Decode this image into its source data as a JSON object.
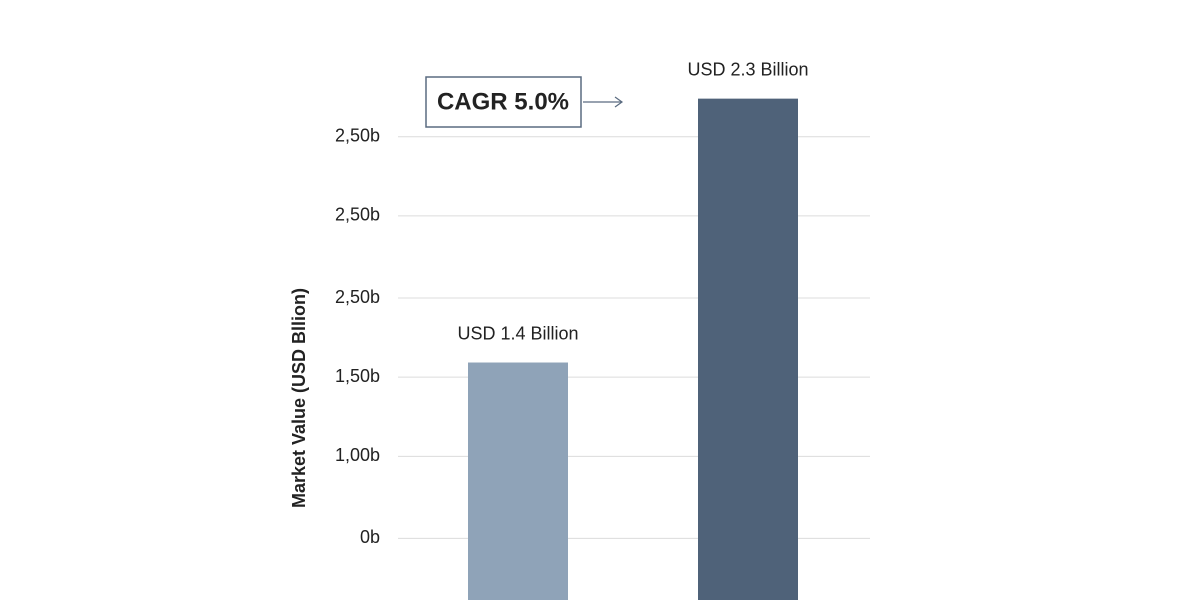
{
  "chart_data": {
    "type": "bar",
    "y_label": "Market Value (USD Bllion)",
    "annotation": "CAGR 5.0%",
    "categories": [
      null,
      null
    ],
    "values": [
      1.4,
      2.3
    ],
    "value_labels": [
      "USD 1.4 Billion",
      "USD 2.3 Billion"
    ],
    "colors": [
      "#8fa3b8",
      "#4f6279"
    ],
    "ylim": [
      0.59,
      2.5
    ],
    "yticks": [
      {
        "value": 0.8,
        "label": "0b"
      },
      {
        "value": 1.08,
        "label": "1,00b"
      },
      {
        "value": 1.35,
        "label": "1,50b"
      },
      {
        "value": 1.62,
        "label": "2,50b"
      },
      {
        "value": 1.9,
        "label": "2,50b"
      },
      {
        "value": 2.17,
        "label": "2,50b"
      }
    ],
    "grid": true
  }
}
